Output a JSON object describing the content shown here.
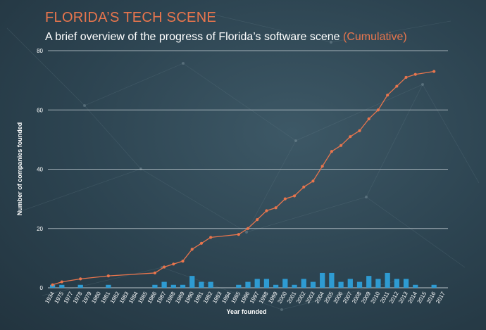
{
  "header": {
    "title": "FLORIDA’S TECH SCENE",
    "subtitle_main": "A brief overview of the progress of Florida’s software scene ",
    "subtitle_accent": "(Cumulative)"
  },
  "colors": {
    "line": "#e8754d",
    "bars": "#2e9bd2",
    "title": "#e8754d",
    "grid": "#c9d3d8"
  },
  "chart_data": {
    "type": "bar+line",
    "title": "FLORIDA’S TECH SCENE",
    "subtitle": "A brief overview of the progress of Florida’s software scene (Cumulative)",
    "xlabel": "Year founded",
    "ylabel": "Number of companies founded",
    "ylim": [
      0,
      80
    ],
    "yticks": [
      0,
      20,
      40,
      60,
      80
    ],
    "grid": true,
    "categories": [
      "1934",
      "1975",
      "1977",
      "1978",
      "1979",
      "1980",
      "1981",
      "1982",
      "1983",
      "1984",
      "1985",
      "1986",
      "1987",
      "1988",
      "1989",
      "1990",
      "1991",
      "1992",
      "1993",
      "1994",
      "1995",
      "1996",
      "1997",
      "1998",
      "1999",
      "2000",
      "2001",
      "2002",
      "2003",
      "2004",
      "2005",
      "2006",
      "2007",
      "2008",
      "2009",
      "2010",
      "2011",
      "2012",
      "2013",
      "2014",
      "2015",
      "2016",
      "2017"
    ],
    "series": [
      {
        "type": "bar",
        "values": [
          1,
          1,
          0,
          1,
          0,
          0,
          1,
          0,
          0,
          0,
          0,
          1,
          2,
          1,
          1,
          4,
          2,
          2,
          0,
          0,
          1,
          2,
          3,
          3,
          1,
          3,
          1,
          3,
          2,
          5,
          5,
          2,
          3,
          2,
          4,
          3,
          5,
          3,
          3,
          1,
          0,
          1,
          0
        ]
      },
      {
        "type": "line",
        "values": [
          1,
          2,
          null,
          3,
          null,
          null,
          4,
          null,
          null,
          null,
          null,
          5,
          7,
          8,
          9,
          13,
          15,
          17,
          null,
          null,
          18,
          20,
          23,
          26,
          27,
          30,
          31,
          34,
          36,
          41,
          46,
          48,
          51,
          53,
          57,
          60,
          65,
          68,
          71,
          72,
          null,
          73,
          null
        ]
      }
    ]
  }
}
